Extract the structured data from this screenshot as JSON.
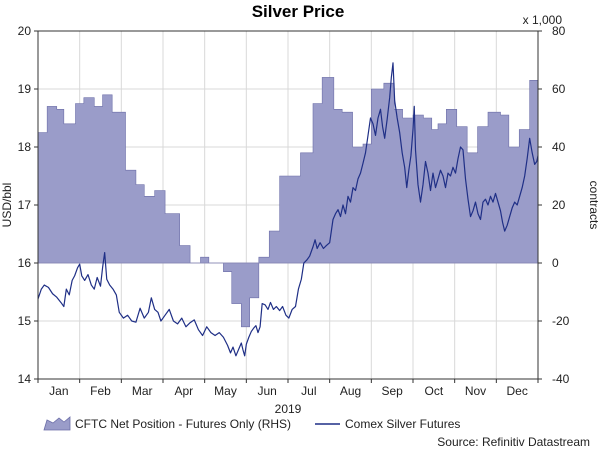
{
  "chart_data": {
    "type": "line",
    "title": "Silver Price",
    "xlabel": "2019",
    "ylabel_left": "USD/bbl",
    "ylabel_right": "contracts",
    "right_multiplier": "x 1,000",
    "source": "Source: Refinitiv Datastream",
    "x_ticks": [
      "Jan",
      "Feb",
      "Mar",
      "Apr",
      "May",
      "Jun",
      "Jul",
      "Aug",
      "Sep",
      "Oct",
      "Nov",
      "Dec"
    ],
    "y_left": {
      "min": 14,
      "max": 20,
      "ticks": [
        "14",
        "15",
        "16",
        "17",
        "18",
        "19",
        "20"
      ]
    },
    "y_right": {
      "min": -40,
      "max": 80,
      "ticks": [
        "-40",
        "-20",
        "0",
        "20",
        "40",
        "60",
        "80"
      ]
    },
    "grid": true,
    "legend_position": "bottom",
    "series": [
      {
        "name": "CFTC Net Position - Futures Only (RHS)",
        "kind": "area",
        "axis": "right",
        "color": "#9a9cc9",
        "points": [
          [
            0.0,
            45
          ],
          [
            0.22,
            45
          ],
          [
            0.22,
            54
          ],
          [
            0.45,
            54
          ],
          [
            0.45,
            53
          ],
          [
            0.62,
            53
          ],
          [
            0.62,
            48
          ],
          [
            0.9,
            48
          ],
          [
            0.9,
            55
          ],
          [
            1.1,
            55
          ],
          [
            1.1,
            57
          ],
          [
            1.35,
            57
          ],
          [
            1.35,
            54
          ],
          [
            1.55,
            54
          ],
          [
            1.55,
            58
          ],
          [
            1.78,
            58
          ],
          [
            1.78,
            52
          ],
          [
            2.1,
            52
          ],
          [
            2.1,
            32
          ],
          [
            2.35,
            32
          ],
          [
            2.35,
            27
          ],
          [
            2.55,
            27
          ],
          [
            2.55,
            23
          ],
          [
            2.8,
            23
          ],
          [
            2.8,
            25
          ],
          [
            3.05,
            25
          ],
          [
            3.05,
            17
          ],
          [
            3.4,
            17
          ],
          [
            3.4,
            6
          ],
          [
            3.65,
            6
          ],
          [
            3.65,
            0
          ],
          [
            3.9,
            0
          ],
          [
            3.9,
            2
          ],
          [
            4.1,
            2
          ],
          [
            4.1,
            0
          ],
          [
            4.45,
            0
          ],
          [
            4.45,
            -3
          ],
          [
            4.65,
            -3
          ],
          [
            4.65,
            -14
          ],
          [
            4.88,
            -14
          ],
          [
            4.88,
            -22
          ],
          [
            5.08,
            -22
          ],
          [
            5.08,
            -12
          ],
          [
            5.3,
            -12
          ],
          [
            5.3,
            2
          ],
          [
            5.55,
            2
          ],
          [
            5.55,
            11
          ],
          [
            5.8,
            11
          ],
          [
            5.8,
            30
          ],
          [
            6.1,
            30
          ],
          [
            6.1,
            30
          ],
          [
            6.3,
            30
          ],
          [
            6.3,
            38
          ],
          [
            6.6,
            38
          ],
          [
            6.6,
            55
          ],
          [
            6.82,
            55
          ],
          [
            6.82,
            64
          ],
          [
            7.1,
            64
          ],
          [
            7.1,
            53
          ],
          [
            7.3,
            53
          ],
          [
            7.3,
            52
          ],
          [
            7.55,
            52
          ],
          [
            7.55,
            40
          ],
          [
            7.8,
            40
          ],
          [
            7.8,
            41
          ],
          [
            8.0,
            41
          ],
          [
            8.0,
            60
          ],
          [
            8.3,
            60
          ],
          [
            8.3,
            62
          ],
          [
            8.55,
            62
          ],
          [
            8.55,
            53
          ],
          [
            8.75,
            53
          ],
          [
            8.75,
            50
          ],
          [
            9.0,
            50
          ],
          [
            9.0,
            51
          ],
          [
            9.25,
            51
          ],
          [
            9.25,
            50
          ],
          [
            9.45,
            50
          ],
          [
            9.45,
            46
          ],
          [
            9.6,
            46
          ],
          [
            9.6,
            48
          ],
          [
            9.8,
            48
          ],
          [
            9.8,
            53
          ],
          [
            10.05,
            53
          ],
          [
            10.05,
            47
          ],
          [
            10.3,
            47
          ],
          [
            10.3,
            38
          ],
          [
            10.55,
            38
          ],
          [
            10.55,
            47
          ],
          [
            10.8,
            47
          ],
          [
            10.8,
            52
          ],
          [
            11.1,
            52
          ],
          [
            11.1,
            51
          ],
          [
            11.3,
            51
          ],
          [
            11.3,
            40
          ],
          [
            11.55,
            40
          ],
          [
            11.55,
            46
          ],
          [
            11.8,
            46
          ],
          [
            11.8,
            63
          ],
          [
            12.0,
            63
          ]
        ]
      },
      {
        "name": "Comex Silver Futures",
        "kind": "line",
        "axis": "left",
        "color": "#1f2f86",
        "points": [
          [
            0.0,
            15.38
          ],
          [
            0.08,
            15.55
          ],
          [
            0.15,
            15.62
          ],
          [
            0.25,
            15.58
          ],
          [
            0.35,
            15.47
          ],
          [
            0.45,
            15.41
          ],
          [
            0.55,
            15.32
          ],
          [
            0.62,
            15.25
          ],
          [
            0.68,
            15.55
          ],
          [
            0.75,
            15.45
          ],
          [
            0.82,
            15.7
          ],
          [
            0.88,
            15.78
          ],
          [
            0.95,
            15.92
          ],
          [
            1.0,
            15.98
          ],
          [
            1.05,
            15.78
          ],
          [
            1.12,
            15.7
          ],
          [
            1.2,
            15.8
          ],
          [
            1.28,
            15.62
          ],
          [
            1.35,
            15.55
          ],
          [
            1.42,
            15.75
          ],
          [
            1.5,
            15.6
          ],
          [
            1.55,
            15.92
          ],
          [
            1.6,
            16.18
          ],
          [
            1.65,
            15.72
          ],
          [
            1.72,
            15.62
          ],
          [
            1.8,
            15.55
          ],
          [
            1.88,
            15.45
          ],
          [
            1.95,
            15.15
          ],
          [
            2.05,
            15.05
          ],
          [
            2.15,
            15.1
          ],
          [
            2.25,
            15.0
          ],
          [
            2.35,
            14.98
          ],
          [
            2.45,
            15.22
          ],
          [
            2.55,
            15.05
          ],
          [
            2.65,
            15.15
          ],
          [
            2.72,
            15.4
          ],
          [
            2.8,
            15.2
          ],
          [
            2.88,
            15.15
          ],
          [
            2.95,
            15.0
          ],
          [
            3.05,
            15.1
          ],
          [
            3.15,
            15.2
          ],
          [
            3.25,
            15.0
          ],
          [
            3.35,
            14.95
          ],
          [
            3.45,
            15.05
          ],
          [
            3.55,
            14.9
          ],
          [
            3.65,
            14.97
          ],
          [
            3.75,
            15.02
          ],
          [
            3.85,
            14.85
          ],
          [
            3.95,
            14.75
          ],
          [
            4.05,
            14.9
          ],
          [
            4.15,
            14.8
          ],
          [
            4.25,
            14.75
          ],
          [
            4.35,
            14.8
          ],
          [
            4.45,
            14.72
          ],
          [
            4.55,
            14.58
          ],
          [
            4.62,
            14.45
          ],
          [
            4.68,
            14.55
          ],
          [
            4.75,
            14.4
          ],
          [
            4.82,
            14.52
          ],
          [
            4.88,
            14.62
          ],
          [
            4.92,
            14.5
          ],
          [
            4.96,
            14.4
          ],
          [
            5.0,
            14.6
          ],
          [
            5.06,
            14.72
          ],
          [
            5.12,
            14.82
          ],
          [
            5.18,
            14.88
          ],
          [
            5.23,
            14.92
          ],
          [
            5.28,
            14.8
          ],
          [
            5.33,
            14.9
          ],
          [
            5.38,
            15.3
          ],
          [
            5.45,
            15.28
          ],
          [
            5.52,
            15.2
          ],
          [
            5.58,
            15.32
          ],
          [
            5.65,
            15.2
          ],
          [
            5.72,
            15.25
          ],
          [
            5.8,
            15.18
          ],
          [
            5.87,
            15.25
          ],
          [
            5.95,
            15.1
          ],
          [
            6.02,
            15.05
          ],
          [
            6.1,
            15.2
          ],
          [
            6.18,
            15.25
          ],
          [
            6.25,
            15.55
          ],
          [
            6.32,
            15.72
          ],
          [
            6.38,
            16.0
          ],
          [
            6.45,
            16.05
          ],
          [
            6.52,
            16.12
          ],
          [
            6.6,
            16.28
          ],
          [
            6.65,
            16.4
          ],
          [
            6.7,
            16.25
          ],
          [
            6.77,
            16.35
          ],
          [
            6.85,
            16.25
          ],
          [
            6.92,
            16.3
          ],
          [
            7.0,
            16.35
          ],
          [
            7.08,
            16.75
          ],
          [
            7.14,
            16.85
          ],
          [
            7.2,
            16.92
          ],
          [
            7.26,
            16.8
          ],
          [
            7.32,
            17.0
          ],
          [
            7.38,
            16.85
          ],
          [
            7.44,
            17.15
          ],
          [
            7.5,
            17.05
          ],
          [
            7.56,
            17.3
          ],
          [
            7.62,
            17.25
          ],
          [
            7.68,
            17.45
          ],
          [
            7.74,
            17.55
          ],
          [
            7.8,
            17.72
          ],
          [
            7.86,
            17.9
          ],
          [
            7.92,
            18.2
          ],
          [
            7.98,
            18.5
          ],
          [
            8.04,
            18.4
          ],
          [
            8.1,
            18.2
          ],
          [
            8.16,
            18.5
          ],
          [
            8.22,
            18.65
          ],
          [
            8.27,
            18.35
          ],
          [
            8.32,
            18.15
          ],
          [
            8.38,
            18.48
          ],
          [
            8.44,
            18.85
          ],
          [
            8.48,
            19.2
          ],
          [
            8.52,
            19.45
          ],
          [
            8.56,
            18.8
          ],
          [
            8.62,
            18.5
          ],
          [
            8.68,
            18.25
          ],
          [
            8.74,
            17.9
          ],
          [
            8.8,
            17.65
          ],
          [
            8.85,
            17.3
          ],
          [
            8.9,
            17.6
          ],
          [
            8.95,
            17.85
          ],
          [
            9.0,
            18.3
          ],
          [
            9.03,
            18.7
          ],
          [
            9.06,
            17.95
          ],
          [
            9.12,
            17.35
          ],
          [
            9.18,
            17.05
          ],
          [
            9.24,
            17.35
          ],
          [
            9.3,
            17.75
          ],
          [
            9.36,
            17.55
          ],
          [
            9.42,
            17.25
          ],
          [
            9.48,
            17.55
          ],
          [
            9.54,
            17.3
          ],
          [
            9.6,
            17.45
          ],
          [
            9.66,
            17.6
          ],
          [
            9.72,
            17.5
          ],
          [
            9.78,
            17.3
          ],
          [
            9.84,
            17.55
          ],
          [
            9.9,
            17.5
          ],
          [
            9.96,
            17.65
          ],
          [
            10.02,
            17.55
          ],
          [
            10.08,
            17.8
          ],
          [
            10.14,
            18.0
          ],
          [
            10.2,
            17.95
          ],
          [
            10.26,
            17.45
          ],
          [
            10.32,
            17.1
          ],
          [
            10.38,
            16.8
          ],
          [
            10.44,
            16.9
          ],
          [
            10.5,
            17.05
          ],
          [
            10.56,
            16.85
          ],
          [
            10.62,
            16.75
          ],
          [
            10.68,
            17.05
          ],
          [
            10.74,
            17.1
          ],
          [
            10.8,
            17.0
          ],
          [
            10.86,
            17.15
          ],
          [
            10.92,
            17.05
          ],
          [
            10.98,
            17.2
          ],
          [
            11.04,
            17.05
          ],
          [
            11.1,
            16.9
          ],
          [
            11.15,
            16.7
          ],
          [
            11.2,
            16.55
          ],
          [
            11.26,
            16.65
          ],
          [
            11.32,
            16.8
          ],
          [
            11.38,
            16.95
          ],
          [
            11.44,
            17.05
          ],
          [
            11.5,
            17.0
          ],
          [
            11.56,
            17.15
          ],
          [
            11.62,
            17.3
          ],
          [
            11.68,
            17.5
          ],
          [
            11.74,
            17.8
          ],
          [
            11.8,
            18.15
          ],
          [
            11.86,
            17.9
          ],
          [
            11.92,
            17.7
          ],
          [
            11.97,
            17.75
          ],
          [
            12.0,
            17.85
          ]
        ]
      }
    ]
  }
}
